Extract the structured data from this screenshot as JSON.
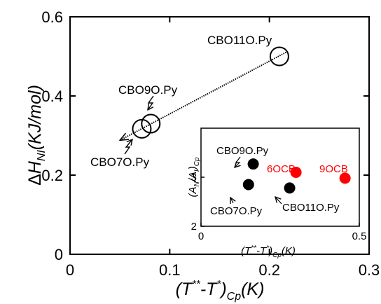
{
  "chart_data": [
    {
      "type": "scatter",
      "title": "",
      "xlabel": "(T**-T*)Cp(K)",
      "ylabel": "ΔHNI(KJ/mol)",
      "xlim": [
        0,
        0.3
      ],
      "ylim": [
        0,
        0.6
      ],
      "xticks": [
        "0",
        "0.1",
        "0.2",
        "0.3"
      ],
      "yticks": [
        "0",
        "0.2",
        "0.4",
        "0.6"
      ],
      "marker": "open circle",
      "points": [
        {
          "label": "CBO7O.Py",
          "x": 0.072,
          "y": 0.317
        },
        {
          "label": "CBO9O.Py",
          "x": 0.081,
          "y": 0.33
        },
        {
          "label": "CBO11O.Py",
          "x": 0.21,
          "y": 0.5
        }
      ],
      "fit_line": {
        "style": "dotted",
        "x": [
          0.05,
          0.218
        ],
        "y": [
          0.288,
          0.512
        ],
        "arrow_at_start": true
      }
    },
    {
      "type": "scatter",
      "title": "",
      "xlabel": "(T**-T*)Cp(K)",
      "ylabel": "(AN/AI)Cp",
      "xlim": [
        0,
        0.5
      ],
      "ylim": [
        2,
        4
      ],
      "xticks": [
        "0",
        "0.5"
      ],
      "yticks": [
        "2",
        "3"
      ],
      "points": [
        {
          "label": "CBO9O.Py",
          "x": 0.165,
          "y": 3.27,
          "color": "#000000"
        },
        {
          "label": "CBO7O.Py",
          "x": 0.15,
          "y": 2.85,
          "color": "#000000"
        },
        {
          "label": "CBO11O.Py",
          "x": 0.28,
          "y": 2.78,
          "color": "#000000"
        },
        {
          "label": "6OCB",
          "x": 0.3,
          "y": 3.1,
          "color": "#ff0000"
        },
        {
          "label": "9OCB",
          "x": 0.455,
          "y": 2.98,
          "color": "#ff0000"
        }
      ]
    }
  ]
}
